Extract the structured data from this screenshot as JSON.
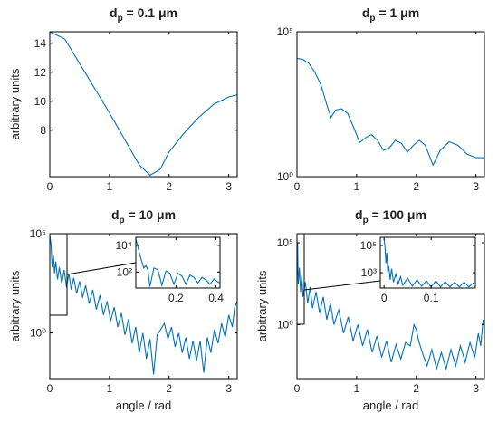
{
  "chart_data": [
    {
      "type": "line",
      "title": "dp = 0.1 μm",
      "ylabel": "arbitrary units",
      "color": "#0072bd",
      "log_y": false,
      "xlim": [
        0,
        3.1416
      ],
      "ylim": [
        4.8,
        14.8
      ],
      "xticks": [
        0,
        1,
        2,
        3
      ],
      "yticks": [
        8,
        10,
        12,
        14
      ],
      "x": [
        0,
        0.25,
        0.5,
        0.75,
        1.0,
        1.25,
        1.5,
        1.68,
        1.85,
        2.0,
        2.25,
        2.5,
        2.75,
        3.0,
        3.1416
      ],
      "values": [
        14.8,
        14.3,
        12.6,
        10.9,
        9.2,
        7.4,
        5.6,
        4.9,
        5.3,
        6.5,
        7.8,
        8.9,
        9.8,
        10.3,
        10.45
      ]
    },
    {
      "type": "line",
      "title": "dp = 1 μm",
      "color": "#0072bd",
      "log_y": true,
      "xlim": [
        0,
        3.1416
      ],
      "ylim": [
        1,
        100000
      ],
      "xticks": [
        0,
        1,
        2,
        3
      ],
      "yticks": [
        {
          "value": 1,
          "label": "10⁰"
        },
        {
          "value": 100000,
          "label": "10⁵"
        }
      ],
      "x": [
        0,
        0.1,
        0.2,
        0.3,
        0.4,
        0.5,
        0.57,
        0.65,
        0.75,
        0.85,
        0.95,
        1.05,
        1.15,
        1.25,
        1.35,
        1.45,
        1.55,
        1.65,
        1.75,
        1.85,
        1.95,
        2.05,
        2.15,
        2.28,
        2.4,
        2.55,
        2.7,
        2.85,
        3.0,
        3.1416
      ],
      "values": [
        12000,
        11000,
        8000,
        4000,
        1500,
        300,
        110,
        200,
        220,
        150,
        50,
        15,
        22,
        28,
        18,
        8,
        10,
        18,
        14,
        7,
        12,
        18,
        12,
        2.5,
        8,
        16,
        12,
        6,
        4.5,
        4.5
      ]
    },
    {
      "type": "line",
      "title": "dp = 10 μm",
      "ylabel": "arbitrary units",
      "xlabel": "angle / rad",
      "color": "#0072bd",
      "log_y": true,
      "xlim": [
        0,
        3.1416
      ],
      "ylim": [
        0.005,
        100000
      ],
      "xticks": [
        0,
        1,
        2,
        3
      ],
      "yticks": [
        {
          "value": 1,
          "label": "10⁰"
        },
        {
          "value": 100000,
          "label": "10⁵"
        }
      ],
      "x": [
        0,
        0.02,
        0.04,
        0.06,
        0.08,
        0.1,
        0.13,
        0.16,
        0.2,
        0.24,
        0.28,
        0.32,
        0.36,
        0.4,
        0.45,
        0.5,
        0.55,
        0.6,
        0.66,
        0.72,
        0.78,
        0.84,
        0.9,
        0.96,
        1.02,
        1.08,
        1.14,
        1.2,
        1.26,
        1.32,
        1.38,
        1.44,
        1.5,
        1.56,
        1.62,
        1.68,
        1.74,
        1.8,
        1.86,
        1.92,
        1.98,
        2.04,
        2.1,
        2.16,
        2.22,
        2.28,
        2.34,
        2.4,
        2.46,
        2.52,
        2.58,
        2.64,
        2.7,
        2.76,
        2.82,
        2.88,
        2.94,
        3.0,
        3.06,
        3.1,
        3.1416
      ],
      "values": [
        80000,
        30000,
        2000,
        8000,
        1000,
        4000,
        500,
        2000,
        300,
        1500,
        200,
        1000,
        150,
        600,
        100,
        400,
        60,
        250,
        30,
        150,
        15,
        80,
        8,
        40,
        4,
        20,
        2,
        10,
        0.8,
        5,
        0.3,
        2,
        0.1,
        1,
        0.05,
        0.5,
        0.008,
        0.8,
        1.5,
        3,
        0.5,
        2,
        0.2,
        1,
        0.1,
        0.6,
        0.05,
        0.4,
        0.04,
        0.4,
        0.01,
        0.6,
        0.1,
        1.5,
        0.3,
        3,
        0.6,
        8,
        2,
        20,
        40
      ],
      "inset": {
        "type": "line",
        "color": "#0072bd",
        "log_y": true,
        "xlim": [
          0,
          0.42
        ],
        "ylim": [
          6.3,
          40000
        ],
        "xticks": [
          0.2,
          0.4
        ],
        "yticks": [
          {
            "value": 100,
            "label": "10²"
          },
          {
            "value": 10000,
            "label": "10⁴"
          }
        ],
        "x": [
          0,
          0.01,
          0.02,
          0.03,
          0.04,
          0.05,
          0.06,
          0.07,
          0.09,
          0.11,
          0.13,
          0.15,
          0.17,
          0.19,
          0.21,
          0.23,
          0.25,
          0.27,
          0.29,
          0.31,
          0.33,
          0.35,
          0.37,
          0.39,
          0.41,
          0.42
        ],
        "values": [
          30000,
          8000,
          2000,
          600,
          200,
          300,
          150,
          8,
          200,
          150,
          10,
          120,
          80,
          12,
          80,
          50,
          12,
          60,
          40,
          15,
          40,
          25,
          12,
          30,
          18,
          15
        ]
      }
    },
    {
      "type": "line",
      "title": "dp = 100 μm",
      "ylabel": "arbitrary units",
      "xlabel": "angle / rad",
      "color": "#0072bd",
      "log_y": true,
      "xlim": [
        0,
        3.1416
      ],
      "ylim": [
        0.0005,
        360000
      ],
      "xticks": [
        0,
        1,
        2,
        3
      ],
      "yticks": [
        {
          "value": 1,
          "label": "10⁰"
        },
        {
          "value": 100000,
          "label": "10⁵"
        }
      ],
      "x": [
        0,
        0.005,
        0.01,
        0.02,
        0.04,
        0.06,
        0.08,
        0.1,
        0.14,
        0.18,
        0.22,
        0.26,
        0.32,
        0.38,
        0.44,
        0.5,
        0.56,
        0.62,
        0.7,
        0.78,
        0.86,
        0.94,
        1.02,
        1.1,
        1.18,
        1.26,
        1.34,
        1.42,
        1.5,
        1.58,
        1.66,
        1.74,
        1.82,
        1.9,
        1.96,
        2.0,
        2.04,
        2.1,
        2.18,
        2.26,
        2.34,
        2.42,
        2.5,
        2.58,
        2.66,
        2.74,
        2.82,
        2.9,
        2.98,
        3.04,
        3.08,
        3.12,
        3.1416
      ],
      "values": [
        200000,
        1000,
        100000,
        300,
        3000,
        100,
        1000,
        50,
        400,
        20,
        200,
        10,
        100,
        5,
        50,
        2,
        20,
        1,
        8,
        0.3,
        3,
        0.1,
        1,
        0.05,
        0.5,
        0.02,
        0.2,
        0.01,
        0.1,
        0.005,
        0.06,
        0.008,
        0.08,
        0.05,
        1,
        0.5,
        0.1,
        0.02,
        0.003,
        0.03,
        0.002,
        0.02,
        0.002,
        0.03,
        0.003,
        0.05,
        0.005,
        0.08,
        0.01,
        0.3,
        0.05,
        2,
        0.5
      ],
      "inset": {
        "type": "line",
        "color": "#0072bd",
        "log_y": true,
        "xlim": [
          -0.008,
          0.194
        ],
        "ylim": [
          74,
          400000
        ],
        "xticks": [
          0,
          0.1
        ],
        "yticks": [
          {
            "value": 1000,
            "label": "10³"
          },
          {
            "value": 100000,
            "label": "10⁵"
          }
        ],
        "x": [
          0,
          0.002,
          0.004,
          0.006,
          0.008,
          0.01,
          0.013,
          0.016,
          0.02,
          0.025,
          0.03,
          0.035,
          0.04,
          0.05,
          0.06,
          0.07,
          0.08,
          0.09,
          0.1,
          0.11,
          0.12,
          0.13,
          0.14,
          0.15,
          0.16,
          0.17,
          0.18,
          0.19
        ],
        "values": [
          300000,
          80000,
          5000,
          30000,
          1000,
          3000,
          300,
          2000,
          200,
          800,
          150,
          500,
          120,
          400,
          100,
          300,
          100,
          250,
          90,
          250,
          90,
          220,
          90,
          200,
          90,
          200,
          90,
          180
        ]
      }
    }
  ]
}
